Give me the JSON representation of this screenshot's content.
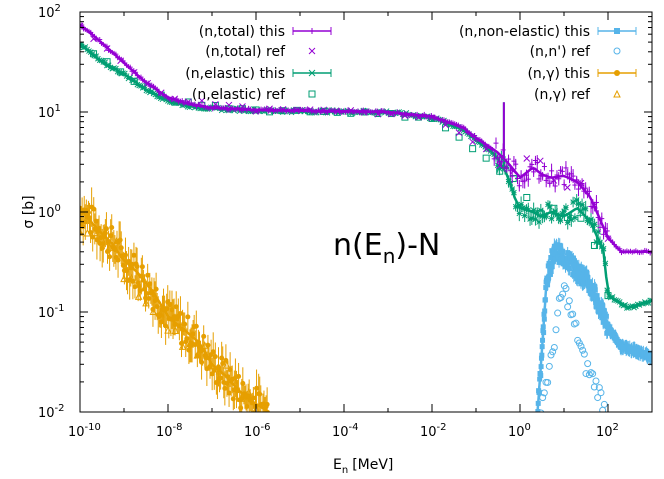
{
  "chart_data": {
    "type": "scatter",
    "title": "",
    "xlabel": "E",
    "xlabel_sub": "n",
    "xlabel_unit": "[MeV]",
    "ylabel": "σ [b]",
    "xscale": "log",
    "yscale": "log",
    "xlim": [
      1e-10,
      1000
    ],
    "ylim": [
      0.01,
      100
    ],
    "grid": false,
    "legend_position": "top",
    "x_ticks": [
      {
        "base": "10",
        "exp": "-10"
      },
      {
        "base": "10",
        "exp": "-8"
      },
      {
        "base": "10",
        "exp": "-6"
      },
      {
        "base": "10",
        "exp": "-4"
      },
      {
        "base": "10",
        "exp": "-2"
      },
      {
        "base": "10",
        "exp": "0"
      },
      {
        "base": "10",
        "exp": "2"
      }
    ],
    "y_ticks": [
      {
        "base": "10",
        "exp": "-2"
      },
      {
        "base": "10",
        "exp": "-1"
      },
      {
        "base": "10",
        "exp": "0"
      },
      {
        "base": "10",
        "exp": "1"
      },
      {
        "base": "10",
        "exp": "2"
      }
    ],
    "annotation": {
      "main": "n(E",
      "sub": "n",
      "tail": ")-N"
    },
    "series": [
      {
        "name": "(n,total) this",
        "color": "#9400d3",
        "marker": "plus-errorbar",
        "x": [
          1e-10,
          3e-10,
          1e-09,
          3e-09,
          1e-08,
          3e-08,
          1e-07,
          1e-06,
          1e-05,
          0.0001,
          0.001,
          0.01,
          0.05,
          0.1,
          0.2,
          0.3,
          0.5,
          0.8,
          1,
          2,
          3,
          5,
          10,
          20,
          40,
          100,
          200,
          500,
          1000
        ],
        "y": [
          75,
          50,
          31,
          20,
          14,
          12,
          11,
          10.5,
          10.3,
          10.2,
          10,
          9,
          7,
          5.5,
          4.5,
          4,
          3.2,
          2.5,
          2.2,
          2.8,
          2.4,
          2.2,
          2.3,
          2,
          1.4,
          0.55,
          0.4,
          0.4,
          0.4
        ]
      },
      {
        "name": "(n,total) ref",
        "color": "#9400d3",
        "marker": "cross",
        "x": [
          1e-10,
          3e-10,
          1e-09,
          1e-08,
          1e-06,
          0.0001,
          0.01,
          0.5,
          2,
          10,
          20,
          100
        ],
        "y": [
          72,
          48,
          30,
          14,
          10.5,
          10.2,
          9,
          3.2,
          2.8,
          2.2,
          2,
          0.55
        ]
      },
      {
        "name": "(n,elastic) this",
        "color": "#009e73",
        "marker": "star-errorbar",
        "x": [
          1e-10,
          3e-10,
          1e-09,
          3e-09,
          1e-08,
          3e-08,
          1e-07,
          1e-06,
          1e-05,
          0.0001,
          0.001,
          0.01,
          0.05,
          0.1,
          0.2,
          0.3,
          0.5,
          0.8,
          1,
          2,
          3,
          5,
          10,
          20,
          40,
          80,
          100,
          150,
          300,
          1000
        ],
        "y": [
          48,
          32,
          24,
          17,
          13,
          11.5,
          10.8,
          10.4,
          10.2,
          10.1,
          10,
          8.8,
          6.8,
          5.2,
          4.2,
          3.5,
          2.4,
          1.3,
          1.1,
          1,
          0.9,
          1.0,
          0.9,
          1.1,
          0.8,
          0.4,
          0.15,
          0.13,
          0.11,
          0.13
        ]
      },
      {
        "name": "(n,elastic) ref",
        "color": "#009e73",
        "marker": "square-open",
        "x": [
          1e-10,
          1e-09,
          1e-08,
          1e-06,
          0.0001,
          0.01,
          0.5,
          2,
          10,
          40,
          100
        ],
        "y": [
          46,
          24,
          13,
          10.4,
          10.1,
          8.8,
          2.4,
          1,
          0.9,
          0.8,
          0.15
        ]
      },
      {
        "name": "(n,non-elastic) this",
        "color": "#56b4e9",
        "marker": "square-errorbar",
        "x": [
          2.5,
          3,
          4,
          5,
          6,
          8,
          10,
          15,
          20,
          30,
          50,
          100,
          200,
          500,
          1000
        ],
        "y": [
          0.01,
          0.03,
          0.2,
          0.3,
          0.42,
          0.38,
          0.35,
          0.3,
          0.25,
          0.22,
          0.15,
          0.07,
          0.045,
          0.04,
          0.035
        ]
      },
      {
        "name": "(n,n') ref",
        "color": "#56b4e9",
        "marker": "circle-open",
        "x": [
          3,
          5,
          8,
          10,
          12,
          15,
          20,
          30,
          50,
          70,
          90
        ],
        "y": [
          0.012,
          0.03,
          0.12,
          0.17,
          0.14,
          0.09,
          0.06,
          0.03,
          0.02,
          0.014,
          0.01
        ]
      },
      {
        "name": "(n,γ) this",
        "color": "#e69f00",
        "marker": "circle-errorbar",
        "x": [
          1e-10,
          2e-10,
          5e-10,
          1e-09,
          2e-09,
          5e-09,
          1e-08,
          2e-08,
          5e-08,
          1e-07,
          2e-07,
          5e-07,
          1e-06,
          2e-06
        ],
        "y": [
          1.1,
          0.75,
          0.5,
          0.33,
          0.25,
          0.15,
          0.09,
          0.07,
          0.05,
          0.03,
          0.023,
          0.015,
          0.012,
          0.01
        ]
      },
      {
        "name": "(n,γ) ref",
        "color": "#e69f00",
        "marker": "triangle-open",
        "x": [
          1e-10,
          1e-09,
          1e-08,
          1e-07,
          1e-06
        ],
        "y": [
          0.9,
          0.3,
          0.09,
          0.03,
          0.011
        ]
      }
    ]
  }
}
